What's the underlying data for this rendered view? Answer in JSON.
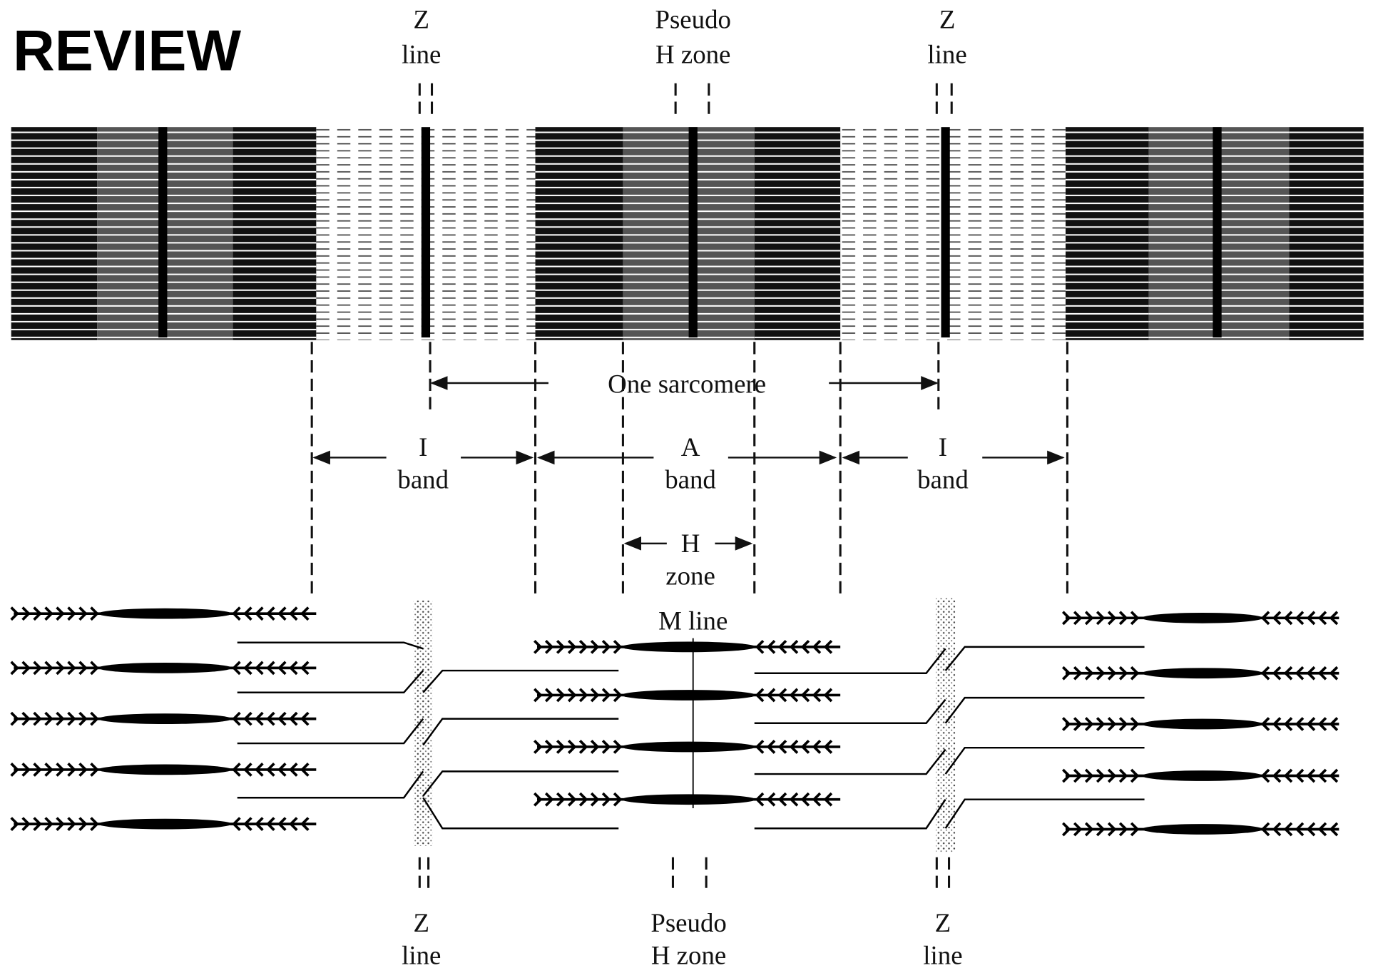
{
  "title": "REVIEW",
  "top_labels": [
    [
      "Z",
      "line"
    ],
    [
      "Pseudo",
      "H zone"
    ],
    [
      "Z",
      "line"
    ]
  ],
  "sarcomere_label": "One sarcomere",
  "band_labels": [
    [
      "I",
      "band"
    ],
    [
      "A",
      "band"
    ],
    [
      "I",
      "band"
    ]
  ],
  "h_zone_label": [
    "H",
    "zone"
  ],
  "m_line_label": "M line",
  "bottom_labels": [
    [
      "Z",
      "line"
    ],
    [
      "Pseudo",
      "H zone"
    ],
    [
      "Z",
      "line"
    ]
  ]
}
